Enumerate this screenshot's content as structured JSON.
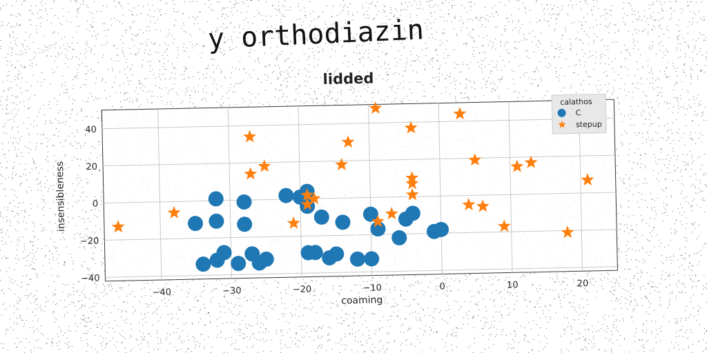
{
  "figure": {
    "suptitle": "y orthodiazin"
  },
  "chart_data": {
    "type": "scatter",
    "title": "lidded",
    "xlabel": "coaming",
    "ylabel": "insensibleness",
    "xlim": [
      -48,
      25
    ],
    "ylim": [
      -42,
      50
    ],
    "xticks": [
      -40,
      -30,
      -20,
      -10,
      0,
      10,
      20
    ],
    "yticks": [
      -40,
      -20,
      0,
      20,
      40
    ],
    "grid": true,
    "legend": {
      "title": "calathos",
      "placement": "top-right"
    },
    "series": [
      {
        "name": "C",
        "marker": "circle",
        "color": "#1f77b4",
        "points": [
          [
            -32,
            1
          ],
          [
            -28,
            -1
          ],
          [
            -22,
            2
          ],
          [
            -20,
            1
          ],
          [
            -19,
            4
          ],
          [
            -19,
            -4
          ],
          [
            -35,
            -12
          ],
          [
            -32,
            -11
          ],
          [
            -28,
            -13
          ],
          [
            -17,
            -10
          ],
          [
            -14,
            -13
          ],
          [
            -10,
            -9
          ],
          [
            -9,
            -17
          ],
          [
            -5,
            -12
          ],
          [
            -4,
            -9
          ],
          [
            -6,
            -22
          ],
          [
            -1,
            -19
          ],
          [
            0,
            -18
          ],
          [
            -31,
            -28
          ],
          [
            -34,
            -34
          ],
          [
            -32,
            -32
          ],
          [
            -29,
            -34
          ],
          [
            -27,
            -29
          ],
          [
            -26,
            -34
          ],
          [
            -25,
            -32
          ],
          [
            -19,
            -29
          ],
          [
            -18,
            -29
          ],
          [
            -16,
            -32
          ],
          [
            -15,
            -30
          ],
          [
            -12,
            -33
          ],
          [
            -10,
            -33
          ]
        ]
      },
      {
        "name": "stepup",
        "marker": "star",
        "color": "#ff7f0e",
        "points": [
          [
            -46,
            -13
          ],
          [
            -38,
            -6
          ],
          [
            -27,
            34
          ],
          [
            -27,
            14
          ],
          [
            -25,
            18
          ],
          [
            -21,
            -13
          ],
          [
            -19,
            2
          ],
          [
            -19,
            -3
          ],
          [
            -18,
            0
          ],
          [
            -14,
            18
          ],
          [
            -13,
            30
          ],
          [
            -9,
            48
          ],
          [
            -9,
            -13
          ],
          [
            -7,
            -9
          ],
          [
            -4,
            37
          ],
          [
            -4,
            10
          ],
          [
            -4,
            7
          ],
          [
            -4,
            1
          ],
          [
            3,
            44
          ],
          [
            4,
            -5
          ],
          [
            5,
            19
          ],
          [
            6,
            -6
          ],
          [
            9,
            -17
          ],
          [
            11,
            15
          ],
          [
            13,
            17
          ],
          [
            18,
            -21
          ],
          [
            21,
            7
          ]
        ]
      }
    ]
  }
}
